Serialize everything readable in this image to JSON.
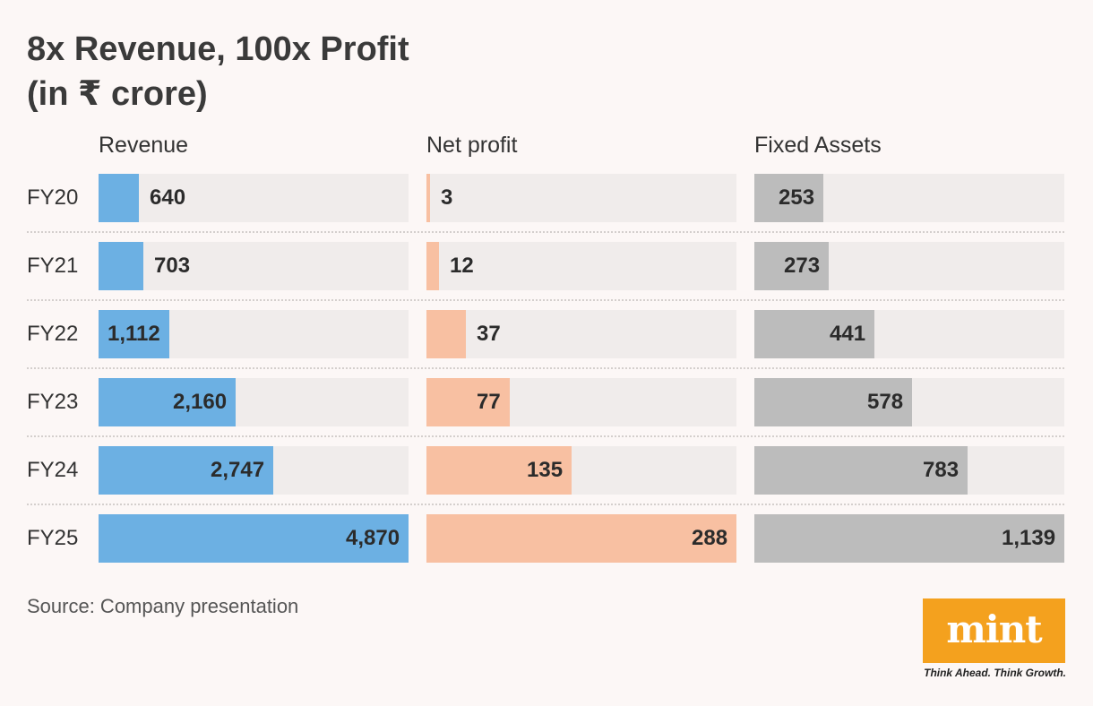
{
  "title_line1": "8x Revenue, 100x Profit",
  "title_line2": "(in ₹ crore)",
  "source": "Source: Company presentation",
  "logo": {
    "word": "mint",
    "tagline": "Think Ahead. Think Growth.",
    "color": "#f4a11e"
  },
  "chart_data": {
    "type": "bar",
    "orientation": "horizontal",
    "categories": [
      "FY20",
      "FY21",
      "FY22",
      "FY23",
      "FY24",
      "FY25"
    ],
    "series": [
      {
        "name": "Revenue",
        "values": [
          640,
          703,
          1112,
          2160,
          2747,
          4870
        ],
        "labels": [
          "640",
          "703",
          "1,112",
          "2,160",
          "2,747",
          "4,870"
        ],
        "color": "#6cb0e3"
      },
      {
        "name": "Net profit",
        "values": [
          3,
          12,
          37,
          77,
          135,
          288
        ],
        "labels": [
          "3",
          "12",
          "37",
          "77",
          "135",
          "288"
        ],
        "color": "#f8c0a2"
      },
      {
        "name": "Fixed Assets",
        "values": [
          253,
          273,
          441,
          578,
          783,
          1139
        ],
        "labels": [
          "253",
          "273",
          "441",
          "578",
          "783",
          "1,139"
        ],
        "color": "#bcbcbc"
      }
    ],
    "track_color": "#f0eceb",
    "grid": false,
    "legend": "none"
  }
}
